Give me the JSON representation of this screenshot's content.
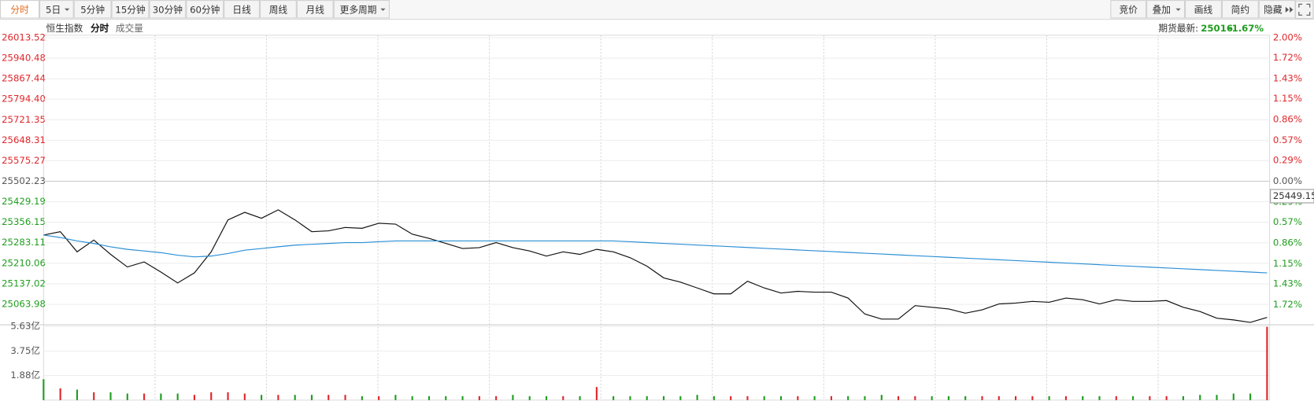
{
  "toolbar": {
    "left": [
      "分时",
      "5日",
      "5分钟",
      "15分钟",
      "30分钟",
      "60分钟",
      "日线",
      "周线",
      "月线",
      "更多周期"
    ],
    "right": [
      "竞价",
      "叠加",
      "画线",
      "简约",
      "隐藏"
    ]
  },
  "header": {
    "mode": "分时",
    "futures_label": "期货最新:",
    "futures_price": "25016",
    "futures_change": "-1.67%"
  },
  "chart_data": [
    {
      "type": "line",
      "ylim": [
        24990.94,
        26013.52
      ],
      "yticks": [
        {
          "value": 26013.52,
          "label": "26013.52"
        },
        {
          "value": 25940.48,
          "label": "25940.48"
        },
        {
          "value": 25867.44,
          "label": "25867.44"
        },
        {
          "value": 25794.4,
          "label": "25794.40"
        },
        {
          "value": 25721.35,
          "label": "25721.35"
        },
        {
          "value": 25648.31,
          "label": "25648.31"
        },
        {
          "value": 25575.27,
          "label": "25575.27"
        },
        {
          "value": 25502.23,
          "label": "25502.23"
        },
        {
          "value": 25429.19,
          "label": "25429.19"
        },
        {
          "value": 25356.15,
          "label": "25356.15"
        },
        {
          "value": 25283.11,
          "label": "25283.11"
        },
        {
          "value": 25210.06,
          "label": "25210.06"
        },
        {
          "value": 25137.02,
          "label": "25137.02"
        },
        {
          "value": 25063.98,
          "label": "25063.98"
        }
      ],
      "y2lim": [
        -2,
        2
      ],
      "y2ticks": [
        {
          "value": 2,
          "label": "2.00%"
        },
        {
          "value": 1.72,
          "label": "1.72%"
        },
        {
          "value": 1.43,
          "label": "1.43%"
        },
        {
          "value": 1.15,
          "label": "1.15%"
        },
        {
          "value": 0.86,
          "label": "0.86%"
        },
        {
          "value": 0.57,
          "label": "0.57%"
        },
        {
          "value": 0.29,
          "label": "0.29%"
        },
        {
          "value": 0,
          "label": "0.00%"
        },
        {
          "value": -0.29,
          "label": "0.29%"
        },
        {
          "value": -0.57,
          "label": "0.57%"
        },
        {
          "value": -0.86,
          "label": "0.86%"
        },
        {
          "value": -1.15,
          "label": "1.15%"
        },
        {
          "value": -1.43,
          "label": "1.43%"
        },
        {
          "value": -1.72,
          "label": "1.72%"
        }
      ],
      "up_color": "#e0262b",
      "down_color": "#1f9d1f",
      "grid": true,
      "price_marker": 25449.15,
      "series": [
        {
          "name": "恒生指数",
          "color": "#111111",
          "values": [
            25310.6,
            25322.6,
            25250.8,
            25292.7,
            25241.8,
            25196.9,
            25214.9,
            25178.9,
            25140.0,
            25176.0,
            25250.8,
            25364.5,
            25391.5,
            25370.5,
            25400.4,
            25364.5,
            25322.6,
            25325.6,
            25337.6,
            25334.6,
            25352.5,
            25349.6,
            25313.6,
            25298.7,
            25280.7,
            25262.7,
            25265.7,
            25283.7,
            25265.7,
            25253.8,
            25235.8,
            25250.8,
            25241.8,
            25259.7,
            25250.8,
            25229.8,
            25199.9,
            25158.0,
            25143.0,
            25122.1,
            25101.1,
            25101.1,
            25146.0,
            25122.1,
            25104.1,
            25110.1,
            25107.1,
            25107.1,
            25086.2,
            25029.3,
            25011.3,
            25011.3,
            25059.2,
            25053.2,
            25047.2,
            25032.3,
            25044.2,
            25065.2,
            25068.2,
            25074.2,
            25071.2,
            25086.2,
            25080.2,
            25065.2,
            25080.2,
            25074.2,
            25074.2,
            25077.2,
            25053.2,
            25038.3,
            25014.3,
            25008.3,
            24999.4,
            25017.3
          ]
        },
        {
          "color": "#2b8fd6",
          "values": [
            25310.6,
            25301.7,
            25289.7,
            25280.7,
            25268.7,
            25259.7,
            25253.8,
            25247.8,
            25238.8,
            25232.8,
            25235.8,
            25244.8,
            25256.7,
            25262.7,
            25268.7,
            25274.7,
            25277.7,
            25280.7,
            25283.7,
            25283.7,
            25286.7,
            25289.7,
            25289.7,
            25289.7,
            25289.7,
            25289.7,
            25289.7,
            25289.7,
            25289.7,
            25289.7,
            25289.7,
            25289.7,
            25289.7,
            25289.7,
            25289.7,
            25286.7,
            25283.8,
            25280.9,
            25278.0,
            25275.0,
            25272.1,
            25269.2,
            25266.3,
            25263.4,
            25260.5,
            25257.5,
            25254.6,
            25251.7,
            25248.8,
            25245.9,
            25243.0,
            25240.0,
            25237.1,
            25234.2,
            25231.3,
            25228.4,
            25225.5,
            25222.5,
            25219.6,
            25216.7,
            25213.8,
            25210.9,
            25208.0,
            25205.0,
            25202.1,
            25199.2,
            25196.3,
            25193.4,
            25190.5,
            25187.5,
            25184.6,
            25181.7,
            25178.8,
            25175.9
          ]
        }
      ]
    },
    {
      "type": "bar",
      "title": "成交量",
      "ylim": [
        0,
        5.63
      ],
      "yticks": [
        {
          "value": 5.63,
          "label": "5.63亿"
        },
        {
          "value": 3.75,
          "label": "3.75亿"
        },
        {
          "value": 1.88,
          "label": "1.88亿"
        }
      ],
      "grid": true,
      "values": [
        1.6,
        0.9,
        0.8,
        0.6,
        0.6,
        0.5,
        0.5,
        0.5,
        0.5,
        0.4,
        0.6,
        0.6,
        0.5,
        0.4,
        0.4,
        0.4,
        0.4,
        0.4,
        0.4,
        0.3,
        0.3,
        0.4,
        0.3,
        0.3,
        0.3,
        0.3,
        0.3,
        0.3,
        0.4,
        0.3,
        0.3,
        0.3,
        0.3,
        1.0,
        0.3,
        0.3,
        0.3,
        0.3,
        0.3,
        0.4,
        0.3,
        0.3,
        0.3,
        0.3,
        0.3,
        0.3,
        0.3,
        0.3,
        0.3,
        0.3,
        0.4,
        0.3,
        0.3,
        0.3,
        0.3,
        0.3,
        0.3,
        0.3,
        0.3,
        0.3,
        0.3,
        0.3,
        0.3,
        0.3,
        0.3,
        0.3,
        0.3,
        0.3,
        0.3,
        0.4,
        0.4,
        0.5,
        0.5,
        5.6
      ]
    }
  ]
}
